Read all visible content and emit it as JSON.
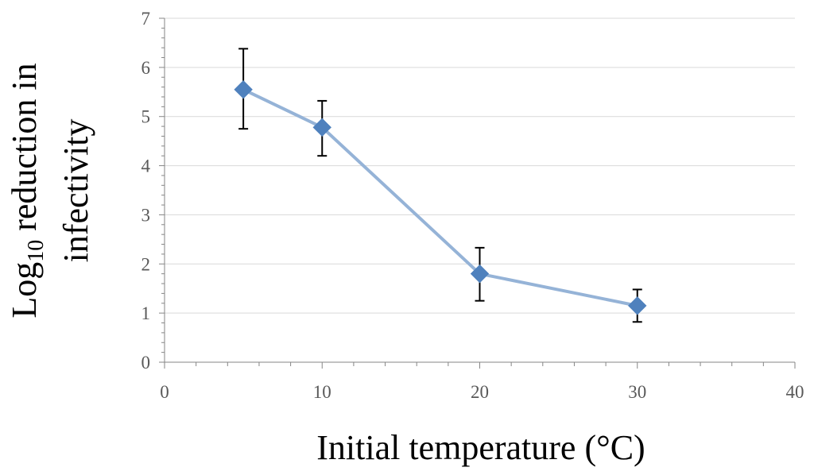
{
  "chart_data": {
    "type": "line",
    "title": "",
    "xlabel": "Initial temperature (°C)",
    "ylabel": {
      "prefix": "Log",
      "subscript": "10",
      "suffix": " reduction in",
      "line2": "infectivity"
    },
    "xlim": [
      0,
      40
    ],
    "ylim": [
      0,
      7
    ],
    "xticks": [
      0,
      10,
      20,
      30,
      40
    ],
    "yticks": [
      0,
      1,
      2,
      3,
      4,
      5,
      6,
      7
    ],
    "grid": "horizontal",
    "series": [
      {
        "name": "Log10 reduction in infectivity",
        "x": [
          5,
          10,
          20,
          30
        ],
        "y": [
          5.55,
          4.78,
          1.8,
          1.15
        ],
        "error_low": [
          4.75,
          4.2,
          1.25,
          0.82
        ],
        "error_high": [
          6.38,
          5.32,
          2.33,
          1.48
        ]
      }
    ],
    "colors": {
      "line": "#95B3D7",
      "marker": "#4F81BD",
      "errorbar": "#000000",
      "grid": "#D9D9D9",
      "axis": "#868686"
    }
  }
}
